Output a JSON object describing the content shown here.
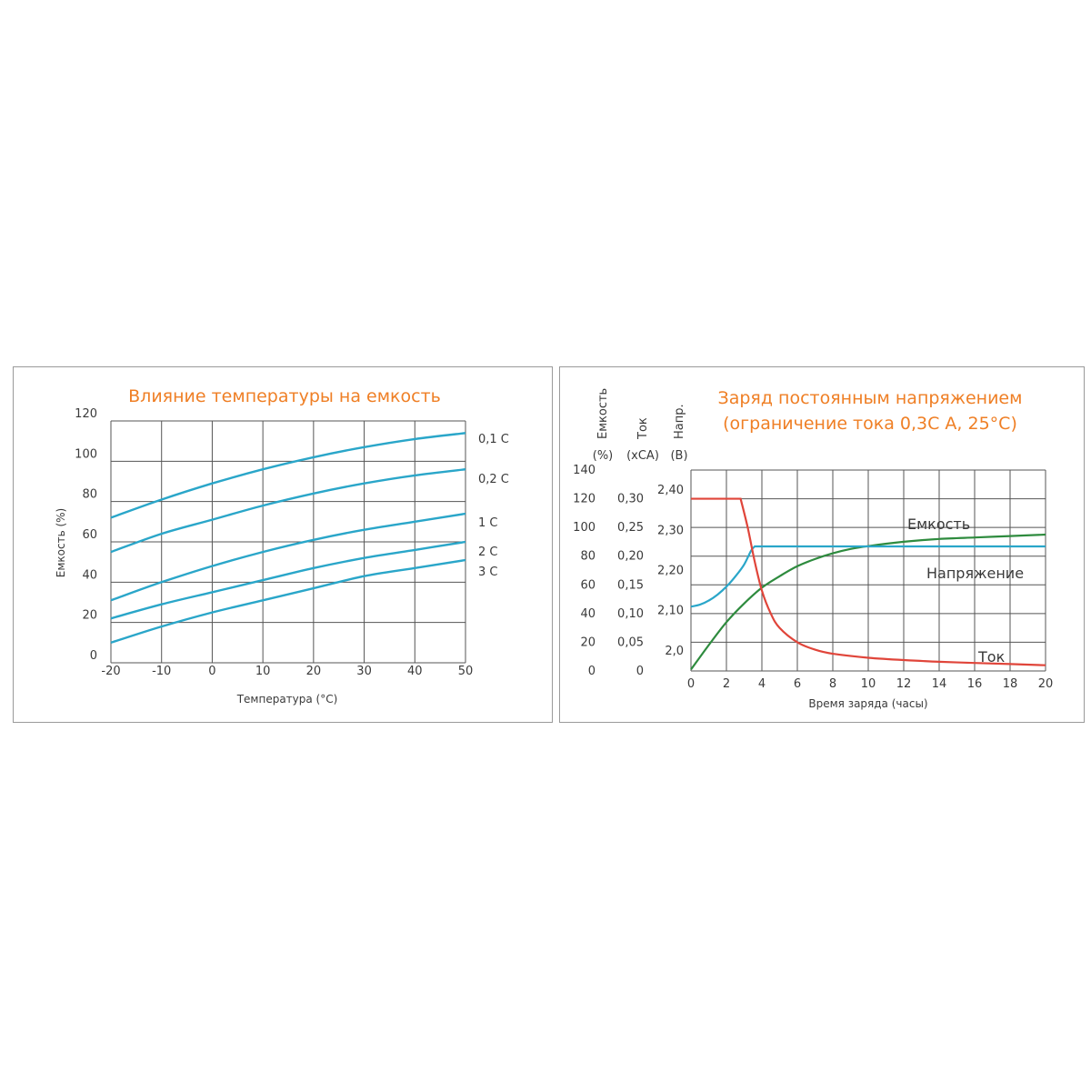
{
  "chart_data": [
    {
      "type": "line",
      "title": "Влияние температуры на емкость",
      "xlabel": "Температура (°C)",
      "ylabel": "Емкость (%)",
      "x_ticks": [
        "-20",
        "-10",
        "0",
        "10",
        "20",
        "30",
        "40",
        "50"
      ],
      "y_ticks": [
        "0",
        "20",
        "40",
        "60",
        "80",
        "100",
        "120"
      ],
      "xlim": [
        -20,
        50
      ],
      "ylim": [
        0,
        120
      ],
      "grid": true,
      "colors": {
        "line": "#2aa6c9",
        "title": "#ef7f25",
        "grid": "#555555"
      },
      "x": [
        -20,
        -10,
        0,
        10,
        20,
        30,
        40,
        50
      ],
      "series": [
        {
          "name": "0,1 C",
          "values": [
            72,
            81,
            89,
            96,
            102,
            107,
            111,
            114
          ]
        },
        {
          "name": "0,2 C",
          "values": [
            55,
            64,
            71,
            78,
            84,
            89,
            93,
            96
          ]
        },
        {
          "name": "1 C",
          "values": [
            31,
            40,
            48,
            55,
            61,
            66,
            70,
            74
          ]
        },
        {
          "name": "2 C",
          "values": [
            22,
            29,
            35,
            41,
            47,
            52,
            56,
            60
          ]
        },
        {
          "name": "3 C",
          "values": [
            10,
            18,
            25,
            31,
            37,
            43,
            47,
            51
          ]
        }
      ]
    },
    {
      "type": "line",
      "title": "Заряд постоянным напряжением",
      "subtitle": "(ограничение тока 0,3C А, 25°C)",
      "xlabel": "Время заряда (часы)",
      "xlim": [
        0,
        20
      ],
      "x_ticks": [
        "0",
        "2",
        "4",
        "6",
        "8",
        "10",
        "12",
        "14",
        "16",
        "18",
        "20"
      ],
      "grid": true,
      "axes": [
        {
          "name": "Емкость",
          "unit": "(%)",
          "ticks": [
            "0",
            "20",
            "40",
            "60",
            "80",
            "100",
            "120",
            "140"
          ],
          "range": [
            0,
            140
          ]
        },
        {
          "name": "Ток",
          "unit": "(xCA)",
          "ticks": [
            "0",
            "0,05",
            "0,10",
            "0,15",
            "0,20",
            "0,25",
            "0,30"
          ],
          "range": [
            0,
            0.35
          ]
        },
        {
          "name": "Напр.",
          "unit": "(В)",
          "ticks": [
            "2,0",
            "2,10",
            "2,20",
            "2,30",
            "2,40"
          ],
          "range": [
            1.95,
            2.45
          ]
        }
      ],
      "colors": {
        "grid": "#555555",
        "title": "#ef7f25"
      },
      "series": [
        {
          "name": "Емкость",
          "axis": 0,
          "color": "#2e8b3e",
          "x": [
            0,
            1,
            2,
            3,
            4,
            5,
            6,
            7,
            8,
            9,
            10,
            12,
            14,
            16,
            18,
            20
          ],
          "values": [
            1,
            18,
            34,
            47,
            58,
            66,
            73,
            78,
            82,
            85,
            87,
            90,
            92,
            93,
            94,
            95
          ]
        },
        {
          "name": "Напряжение",
          "axis": 2,
          "color": "#2aa6c9",
          "x": [
            0,
            0.5,
            1,
            1.5,
            2,
            2.5,
            3,
            3.4,
            3.6,
            5,
            10,
            15,
            20
          ],
          "values": [
            2.11,
            2.115,
            2.125,
            2.14,
            2.16,
            2.185,
            2.215,
            2.25,
            2.26,
            2.26,
            2.26,
            2.26,
            2.26
          ]
        },
        {
          "name": "Ток",
          "axis": 1,
          "color": "#e0453a",
          "x": [
            0,
            1,
            2,
            2.8,
            3.2,
            3.6,
            4,
            4.5,
            5,
            6,
            7,
            8,
            10,
            12,
            14,
            16,
            18,
            20
          ],
          "values": [
            0.3,
            0.3,
            0.3,
            0.3,
            0.25,
            0.19,
            0.14,
            0.1,
            0.075,
            0.05,
            0.037,
            0.03,
            0.023,
            0.019,
            0.016,
            0.014,
            0.012,
            0.01
          ]
        }
      ]
    }
  ]
}
